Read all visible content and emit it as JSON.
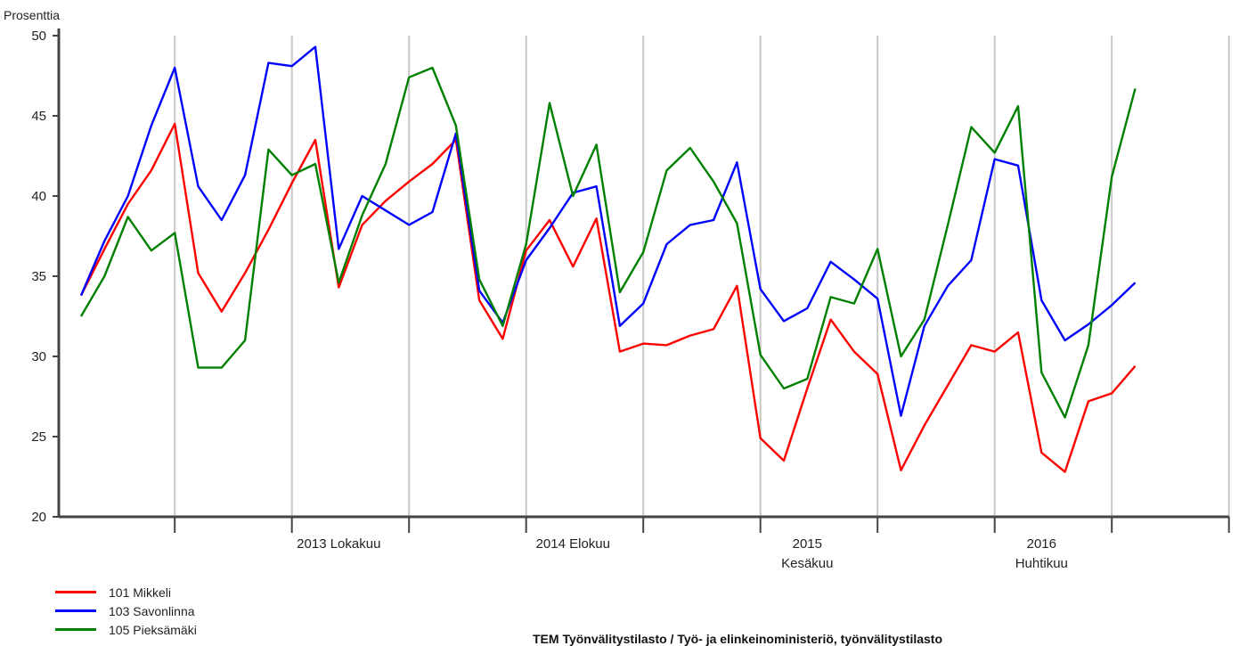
{
  "source_text": "TEM Työnvälitystilasto / Työ- ja elinkeinoministeriö, työnvälitystilasto",
  "chart_data": {
    "type": "line",
    "ylabel": "Prosenttia",
    "ylim": [
      20,
      50
    ],
    "yticks": [
      20,
      25,
      30,
      35,
      40,
      45,
      50
    ],
    "grid": "vertical",
    "legend_placement": "bottom-left",
    "x_start_month": "2012-11",
    "x_labels": [
      {
        "index": 11,
        "line1": "2013 Lokakuu",
        "line2": ""
      },
      {
        "index": 21,
        "line1": "2014 Elokuu",
        "line2": ""
      },
      {
        "index": 31,
        "line1": "2015",
        "line2": "Kesäkuu"
      },
      {
        "index": 41,
        "line1": "2016",
        "line2": "Huhtikuu"
      }
    ],
    "series": [
      {
        "name": "101 Mikkeli",
        "color": "#ff0000",
        "values": [
          33.8,
          36.7,
          39.5,
          41.6,
          44.5,
          35.2,
          32.8,
          35.2,
          37.9,
          40.8,
          43.5,
          34.3,
          38.2,
          39.7,
          40.9,
          42.0,
          43.5,
          33.5,
          31.1,
          36.6,
          38.5,
          35.6,
          38.6,
          30.3,
          30.8,
          30.7,
          31.3,
          31.7,
          34.4,
          24.9,
          23.5,
          28.0,
          32.3,
          30.3,
          28.9,
          22.9,
          25.7,
          28.2,
          30.7,
          30.3,
          31.5,
          24.0,
          22.8,
          27.2,
          27.7,
          29.4
        ]
      },
      {
        "name": "103 Savonlinna",
        "color": "#0000ff",
        "values": [
          33.8,
          37.2,
          40.0,
          44.4,
          48.0,
          40.6,
          38.5,
          41.3,
          48.3,
          48.1,
          49.3,
          36.7,
          40.0,
          39.1,
          38.2,
          39.0,
          43.9,
          34.1,
          32.1,
          36.0,
          38.0,
          40.2,
          40.6,
          31.9,
          33.3,
          37.0,
          38.2,
          38.5,
          42.1,
          34.2,
          32.2,
          33.0,
          35.9,
          34.8,
          33.6,
          26.3,
          31.9,
          34.4,
          36.0,
          42.3,
          41.9,
          33.5,
          31.0,
          32.0,
          33.2,
          34.6
        ]
      },
      {
        "name": "105 Pieksämäki",
        "color": "#008000",
        "values": [
          32.5,
          35.0,
          38.7,
          36.6,
          37.7,
          29.3,
          29.3,
          31.0,
          42.9,
          41.3,
          42.0,
          34.6,
          38.8,
          42.0,
          47.4,
          48.0,
          44.4,
          34.8,
          31.9,
          37.0,
          45.8,
          40.0,
          43.2,
          34.0,
          36.5,
          41.6,
          43.0,
          40.9,
          38.3,
          30.1,
          28.0,
          28.6,
          33.7,
          33.3,
          36.7,
          30.0,
          32.3,
          38.2,
          44.3,
          42.7,
          45.6,
          29.0,
          26.2,
          30.7,
          41.2,
          46.7
        ]
      }
    ]
  }
}
